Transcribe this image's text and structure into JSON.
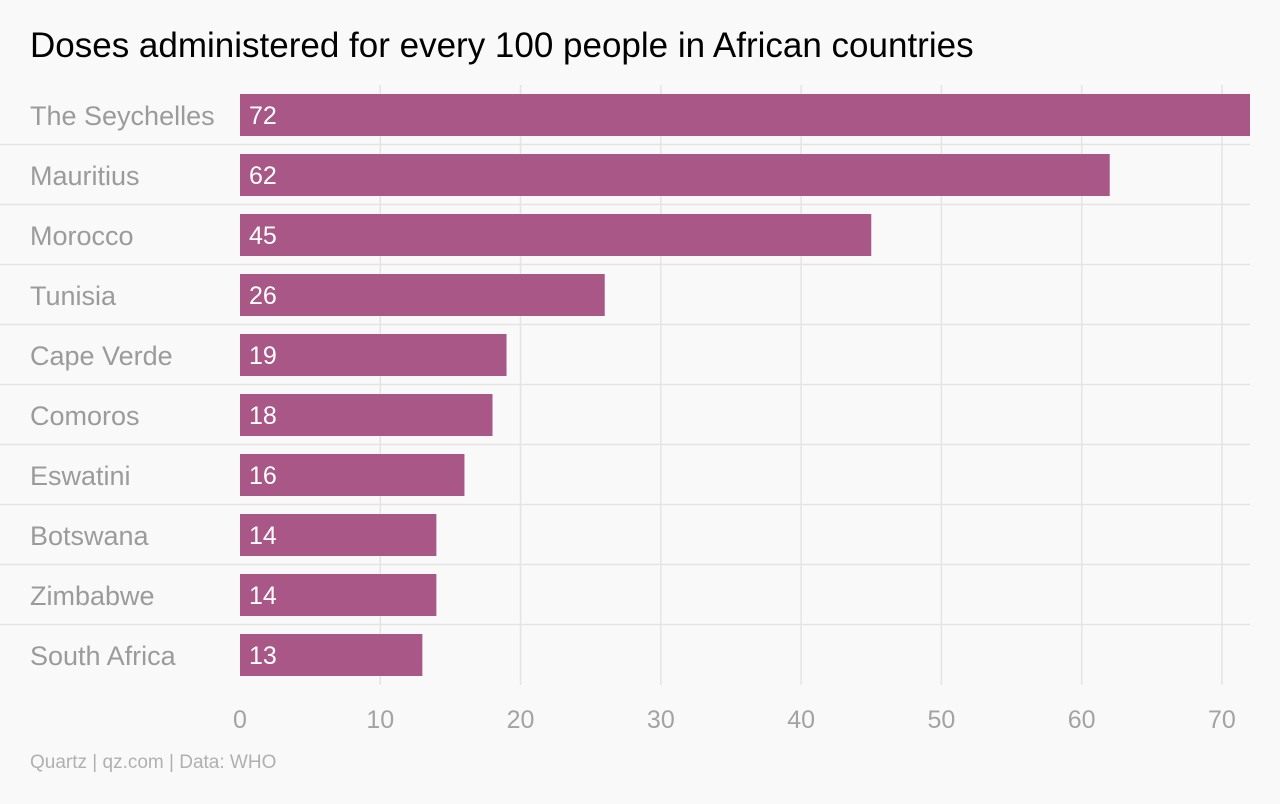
{
  "colors": {
    "bar": "#a85787",
    "grid": "#e4e4e4",
    "background": "#f9f9f9"
  },
  "chart_data": {
    "type": "bar",
    "orientation": "horizontal",
    "title": "Doses administered for every 100 people in African countries",
    "categories": [
      "The Seychelles",
      "Mauritius",
      "Morocco",
      "Tunisia",
      "Cape Verde",
      "Comoros",
      "Eswatini",
      "Botswana",
      "Zimbabwe",
      "South Africa"
    ],
    "values": [
      72,
      62,
      45,
      26,
      19,
      18,
      16,
      14,
      14,
      13
    ],
    "xlim": [
      0,
      72
    ],
    "xticks": [
      0,
      10,
      20,
      30,
      40,
      50,
      60,
      70
    ],
    "grid": true,
    "data_labels": true,
    "source": "Quartz | qz.com | Data: WHO"
  }
}
